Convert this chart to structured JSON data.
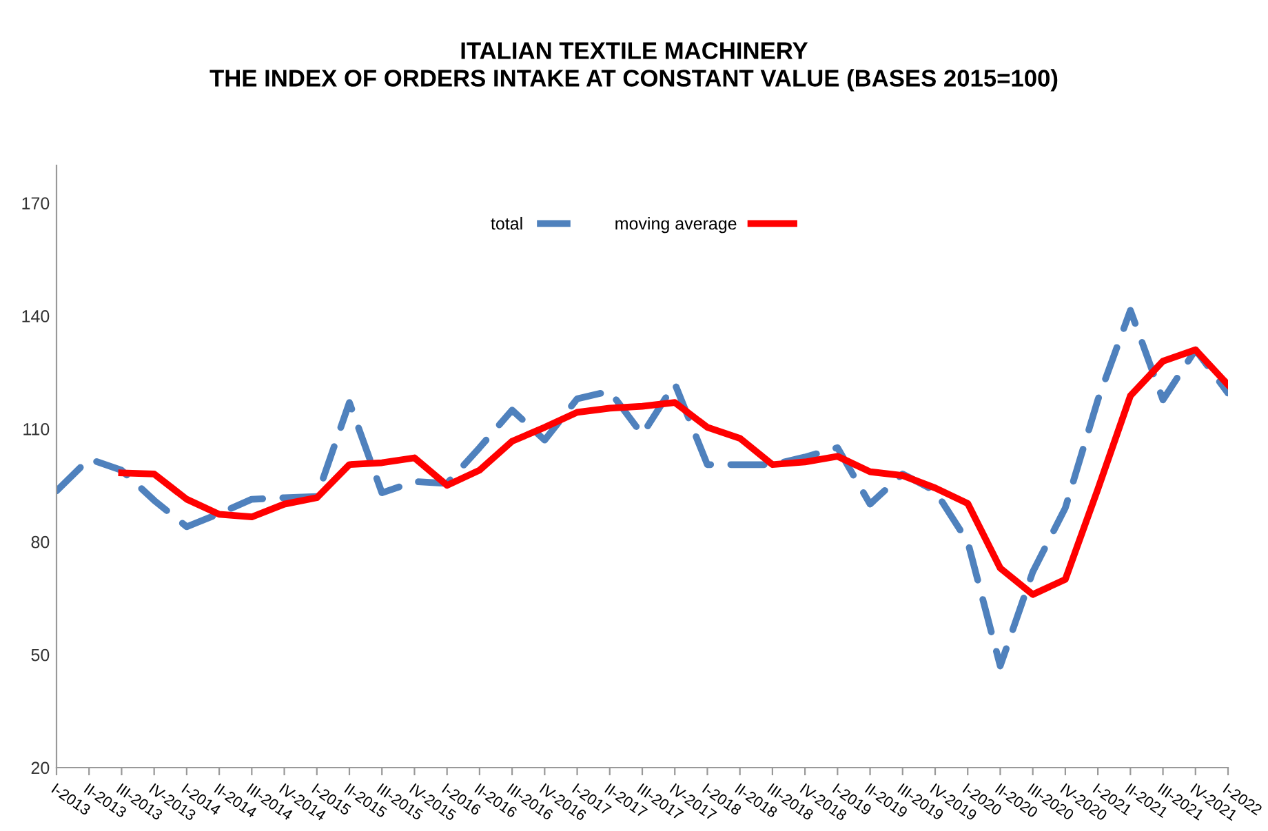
{
  "chart_data": {
    "type": "line",
    "title": "ITALIAN TEXTILE MACHINERY\nTHE INDEX OF ORDERS INTAKE AT CONSTANT VALUE (BASES 2015=100)",
    "categories": [
      "I-2013",
      "II-2013",
      "III-2013",
      "IV-2013",
      "I-2014",
      "II-2014",
      "III-2014",
      "IV-2014",
      "I-2015",
      "II-2015",
      "III-2015",
      "IV-2015",
      "I-2016",
      "II-2016",
      "III-2016",
      "IV-2016",
      "I-2017",
      "II-2017",
      "III-2017",
      "IV-2017",
      "I-2018",
      "II-2018",
      "III-2018",
      "IV-2018",
      "I-2019",
      "II-2019",
      "III-2019",
      "IV-2019",
      "I-2020",
      "II-2020",
      "III-2020",
      "IV-2020",
      "I-2021",
      "II-2021",
      "III-2021",
      "IV-2021",
      "I-2022"
    ],
    "series": [
      {
        "name": "total",
        "color": "#4f81bd",
        "line_style": "dashed",
        "values": [
          93.5,
          102,
          99,
          91,
          84,
          87.5,
          91.3,
          91.7,
          92,
          117,
          93,
          96,
          95.5,
          105,
          115,
          107,
          118,
          120,
          108.5,
          122,
          100.5,
          100.5,
          100.5,
          102.5,
          105,
          90,
          98,
          93.5,
          80,
          47,
          72,
          89,
          117.7,
          141.5,
          117.7,
          131,
          119.5
        ]
      },
      {
        "name": "moving average",
        "color": "#ff0000",
        "line_style": "solid",
        "values": [
          null,
          null,
          98.3,
          98,
          91.3,
          87.3,
          86.6,
          90,
          91.7,
          100.5,
          101,
          102.3,
          95,
          99,
          106.7,
          110.4,
          114.4,
          115.5,
          116,
          117,
          110.4,
          107.5,
          100.5,
          101.2,
          102.7,
          98.6,
          97.6,
          94.3,
          90.2,
          73,
          66,
          70,
          94,
          118.8,
          128,
          131,
          121.7
        ]
      }
    ],
    "ylim": [
      20,
      180
    ],
    "yticks": [
      20,
      50,
      80,
      110,
      140,
      170
    ],
    "grid": false,
    "legend": "top",
    "marker": "none"
  }
}
